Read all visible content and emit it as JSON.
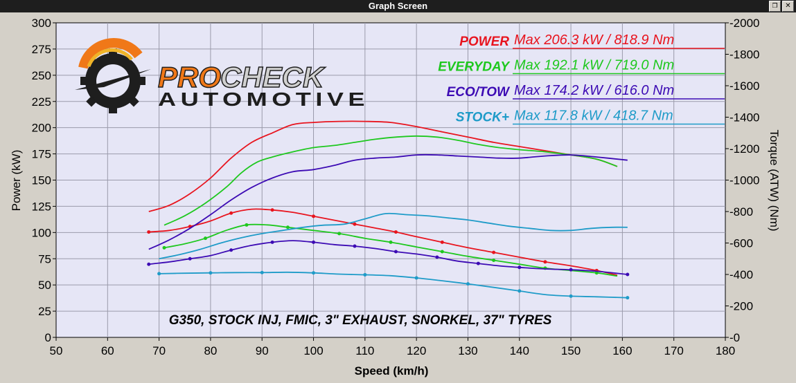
{
  "window": {
    "title": "Graph Screen",
    "restore_glyph": "❐",
    "close_glyph": "✕"
  },
  "logo": {
    "line1_a": "PRO",
    "line1_b": "CHECK",
    "line2": "AUTOMOTIVE"
  },
  "legend": [
    {
      "label": "POWER",
      "value": "Max 206.3 kW  / 818.9 Nm",
      "color": "#e8141e"
    },
    {
      "label": "EVERYDAY",
      "value": "Max 192.1 kW  / 719.0 Nm",
      "color": "#1ec81e"
    },
    {
      "label": "ECO/TOW",
      "value": "Max 174.2 kW  / 616.0 Nm",
      "color": "#3c0ab4"
    },
    {
      "label": "STOCK+",
      "value": "Max 117.8 kW  / 418.7 Nm",
      "color": "#1e9bc8"
    }
  ],
  "annotation": "G350, STOCK INJ, FMIC, 3\" EXHAUST, SNORKEL, 37\" TYRES",
  "chart_data": {
    "type": "line",
    "xlabel": "Speed (km/h)",
    "ylabel": "Power (kW)",
    "y2label": "Torque (ATW) (Nm)",
    "xlim": [
      50,
      180
    ],
    "ylim": [
      0,
      300
    ],
    "y2lim": [
      0,
      2000
    ],
    "x_ticks": [
      "50",
      "60",
      "70",
      "80",
      "90",
      "100",
      "110",
      "120",
      "130",
      "140",
      "150",
      "160",
      "170",
      "180"
    ],
    "y_ticks": [
      "0",
      "25",
      "50",
      "75",
      "100",
      "125",
      "150",
      "175",
      "200",
      "225",
      "250",
      "275",
      "300"
    ],
    "y2_ticks": [
      "0",
      "200",
      "400",
      "600",
      "800",
      "1000",
      "1200",
      "1400",
      "1600",
      "1800",
      "2000"
    ],
    "grid": true,
    "series": [
      {
        "name": "POWER",
        "kind": "power",
        "color": "#e8141e",
        "x": [
          68,
          72,
          76,
          80,
          84,
          88,
          92,
          96,
          100,
          105,
          110,
          115,
          120,
          125,
          130,
          135,
          140,
          145,
          150,
          155,
          159
        ],
        "y": [
          120,
          126,
          137,
          152,
          171,
          186,
          195,
          203,
          205,
          206,
          206,
          205,
          201,
          196,
          191,
          186,
          182,
          178,
          174,
          170,
          163
        ]
      },
      {
        "name": "POWER",
        "kind": "torque",
        "color": "#e8141e",
        "x": [
          68,
          72,
          76,
          80,
          84,
          88,
          92,
          96,
          100,
          104,
          108,
          112,
          116,
          120,
          125,
          130,
          135,
          140,
          145,
          150,
          155,
          159
        ],
        "y": [
          670,
          680,
          705,
          740,
          790,
          815,
          810,
          795,
          770,
          745,
          720,
          695,
          670,
          640,
          605,
          570,
          540,
          510,
          480,
          455,
          425,
          395
        ]
      },
      {
        "name": "EVERYDAY",
        "kind": "power",
        "color": "#1ec81e",
        "x": [
          71,
          75,
          79,
          83,
          86,
          89,
          92,
          96,
          100,
          104,
          108,
          112,
          116,
          120,
          124,
          128,
          132,
          136,
          140,
          145,
          150,
          155,
          159
        ],
        "y": [
          107,
          116,
          128,
          143,
          157,
          167,
          172,
          177,
          181,
          183,
          186,
          189,
          191,
          192,
          191,
          188,
          184,
          181,
          179,
          177,
          174,
          170,
          163
        ]
      },
      {
        "name": "EVERYDAY",
        "kind": "torque",
        "color": "#1ec81e",
        "x": [
          71,
          75,
          79,
          83,
          87,
          91,
          95,
          100,
          105,
          110,
          115,
          120,
          125,
          130,
          135,
          140,
          145,
          150,
          155,
          159
        ],
        "y": [
          570,
          595,
          630,
          680,
          715,
          715,
          700,
          680,
          660,
          630,
          605,
          575,
          545,
          515,
          490,
          465,
          440,
          425,
          410,
          390
        ]
      },
      {
        "name": "ECO/TOW",
        "kind": "power",
        "color": "#3c0ab4",
        "x": [
          68,
          72,
          76,
          80,
          84,
          88,
          92,
          96,
          100,
          104,
          108,
          112,
          116,
          120,
          124,
          128,
          132,
          136,
          140,
          145,
          150,
          155,
          161
        ],
        "y": [
          84,
          93,
          104,
          117,
          131,
          143,
          152,
          158,
          160,
          164,
          169,
          171,
          172,
          174,
          174,
          173,
          172,
          171,
          171,
          173,
          174,
          172,
          169
        ]
      },
      {
        "name": "ECO/TOW",
        "kind": "torque",
        "color": "#3c0ab4",
        "x": [
          68,
          72,
          76,
          80,
          84,
          88,
          92,
          96,
          100,
          104,
          108,
          112,
          116,
          120,
          124,
          128,
          132,
          136,
          140,
          145,
          150,
          155,
          161
        ],
        "y": [
          465,
          480,
          500,
          520,
          555,
          585,
          605,
          615,
          605,
          590,
          580,
          565,
          545,
          530,
          510,
          485,
          470,
          455,
          445,
          435,
          430,
          420,
          400
        ]
      },
      {
        "name": "STOCK+",
        "kind": "power",
        "color": "#1e9bc8",
        "x": [
          70,
          74,
          78,
          82,
          86,
          90,
          94,
          98,
          102,
          106,
          110,
          114,
          118,
          122,
          126,
          130,
          134,
          138,
          142,
          146,
          150,
          154,
          158,
          161
        ],
        "y": [
          75,
          79,
          84,
          90,
          95,
          99,
          102,
          105,
          107,
          108,
          113,
          118,
          117,
          116,
          114,
          112,
          109,
          106,
          104,
          102,
          102,
          104,
          105,
          105
        ]
      },
      {
        "name": "STOCK+",
        "kind": "torque",
        "color": "#1e9bc8",
        "x": [
          70,
          75,
          80,
          85,
          90,
          95,
          100,
          105,
          110,
          115,
          120,
          125,
          130,
          135,
          140,
          145,
          150,
          155,
          161
        ],
        "y": [
          405,
          408,
          410,
          412,
          412,
          414,
          410,
          402,
          398,
          392,
          378,
          360,
          340,
          318,
          295,
          272,
          262,
          258,
          252
        ]
      }
    ]
  }
}
